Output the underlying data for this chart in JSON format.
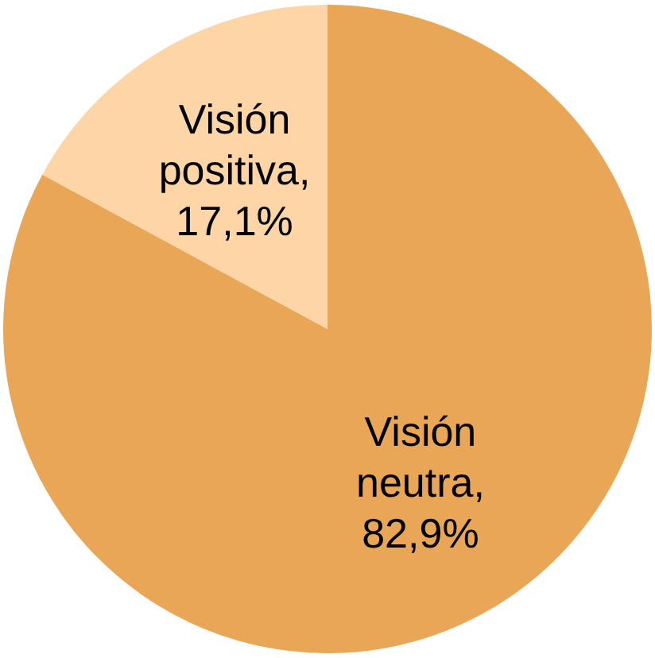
{
  "chart_data": {
    "type": "pie",
    "categories": [
      "Visión neutra",
      "Visión positiva"
    ],
    "values": [
      82.9,
      17.1
    ],
    "value_labels": [
      ", 82,9%",
      ", 17,1%"
    ],
    "colors": [
      "#e9a656",
      "#fdd5a6"
    ],
    "legend": false
  }
}
